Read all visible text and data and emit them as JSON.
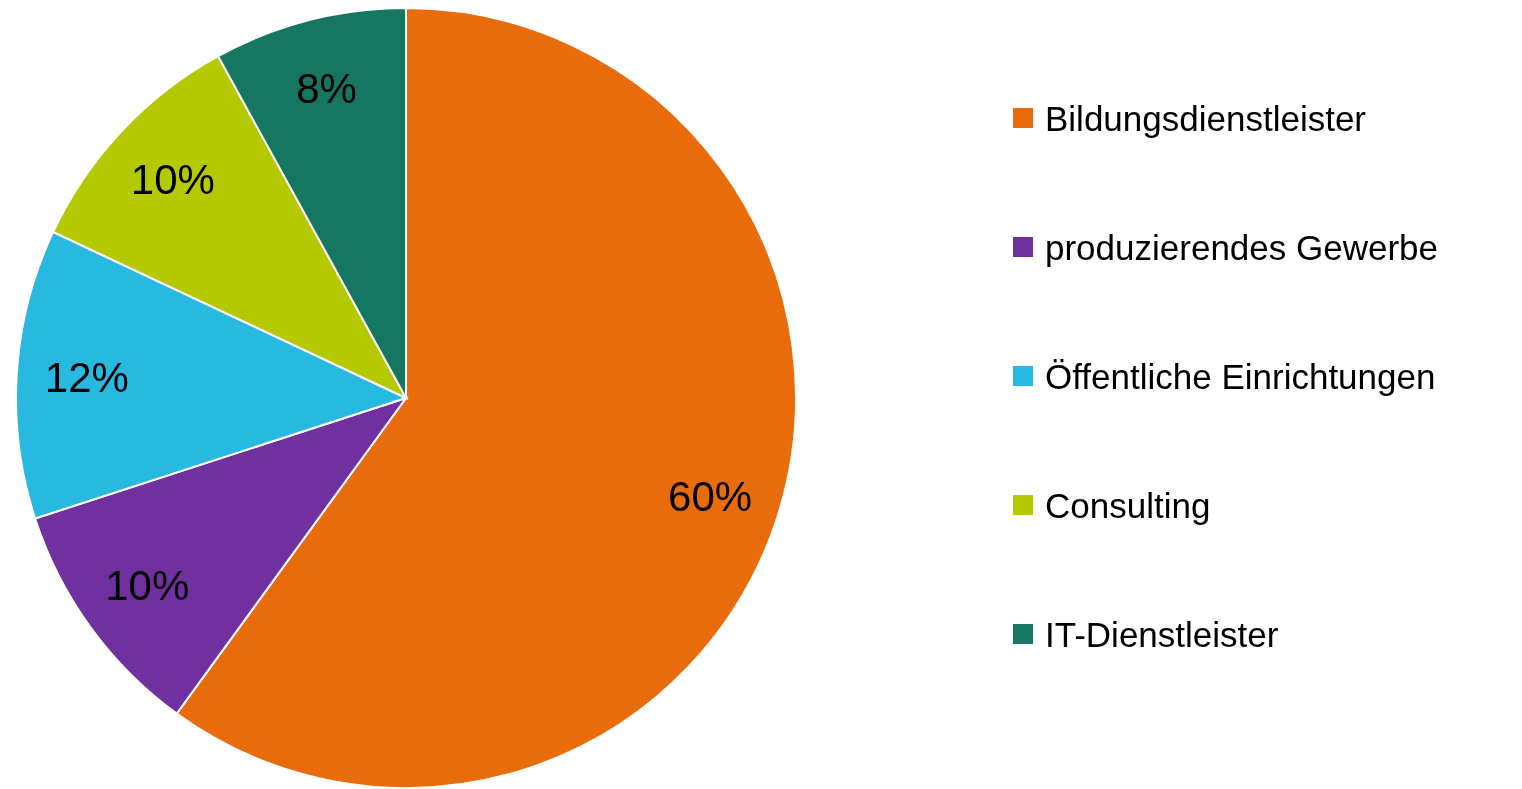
{
  "chart_data": {
    "type": "pie",
    "categories": [
      "Bildungsdienstleister",
      "produzierendes Gewerbe",
      "Öffentliche Einrichtungen",
      "Consulting",
      "IT-Dienstleister"
    ],
    "values": [
      60,
      10,
      12,
      10,
      8
    ],
    "colors": [
      "#e96c0c",
      "#7030a0",
      "#27b9e0",
      "#b5c900",
      "#157761"
    ],
    "value_labels": [
      "60%",
      "10%",
      "12%",
      "10%",
      "8%"
    ],
    "legend": "right"
  }
}
